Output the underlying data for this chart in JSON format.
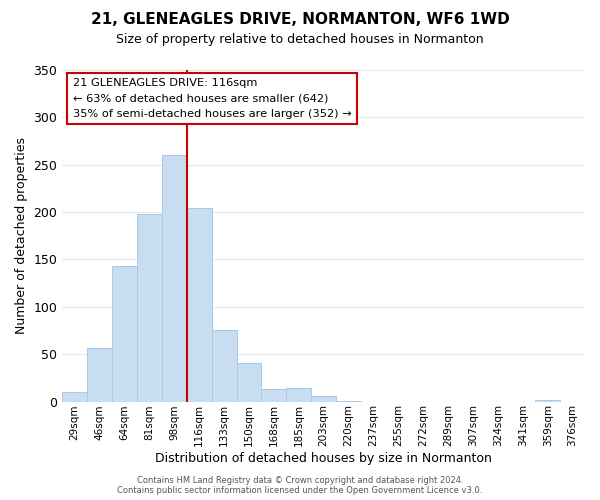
{
  "title": "21, GLENEAGLES DRIVE, NORMANTON, WF6 1WD",
  "subtitle": "Size of property relative to detached houses in Normanton",
  "xlabel": "Distribution of detached houses by size in Normanton",
  "ylabel": "Number of detached properties",
  "bar_color": "#c8ddf0",
  "bar_edge_color": "#aac8e8",
  "vline_color": "#cc0000",
  "tick_labels": [
    "29sqm",
    "46sqm",
    "64sqm",
    "81sqm",
    "98sqm",
    "116sqm",
    "133sqm",
    "150sqm",
    "168sqm",
    "185sqm",
    "203sqm",
    "220sqm",
    "237sqm",
    "255sqm",
    "272sqm",
    "289sqm",
    "307sqm",
    "324sqm",
    "341sqm",
    "359sqm",
    "376sqm"
  ],
  "bar_heights": [
    10,
    57,
    143,
    198,
    260,
    204,
    75,
    41,
    13,
    14,
    6,
    1,
    0,
    0,
    0,
    0,
    0,
    0,
    0,
    2,
    0
  ],
  "vline_pos": 4.5,
  "ylim": [
    0,
    350
  ],
  "yticks": [
    0,
    50,
    100,
    150,
    200,
    250,
    300,
    350
  ],
  "annotation_title": "21 GLENEAGLES DRIVE: 116sqm",
  "annotation_line1": "← 63% of detached houses are smaller (642)",
  "annotation_line2": "35% of semi-detached houses are larger (352) →",
  "annotation_box_color": "#ffffff",
  "annotation_box_edge_color": "#cc0000",
  "footer_line1": "Contains HM Land Registry data © Crown copyright and database right 2024.",
  "footer_line2": "Contains public sector information licensed under the Open Government Licence v3.0.",
  "background_color": "#ffffff",
  "grid_color": "#e0e8f0"
}
